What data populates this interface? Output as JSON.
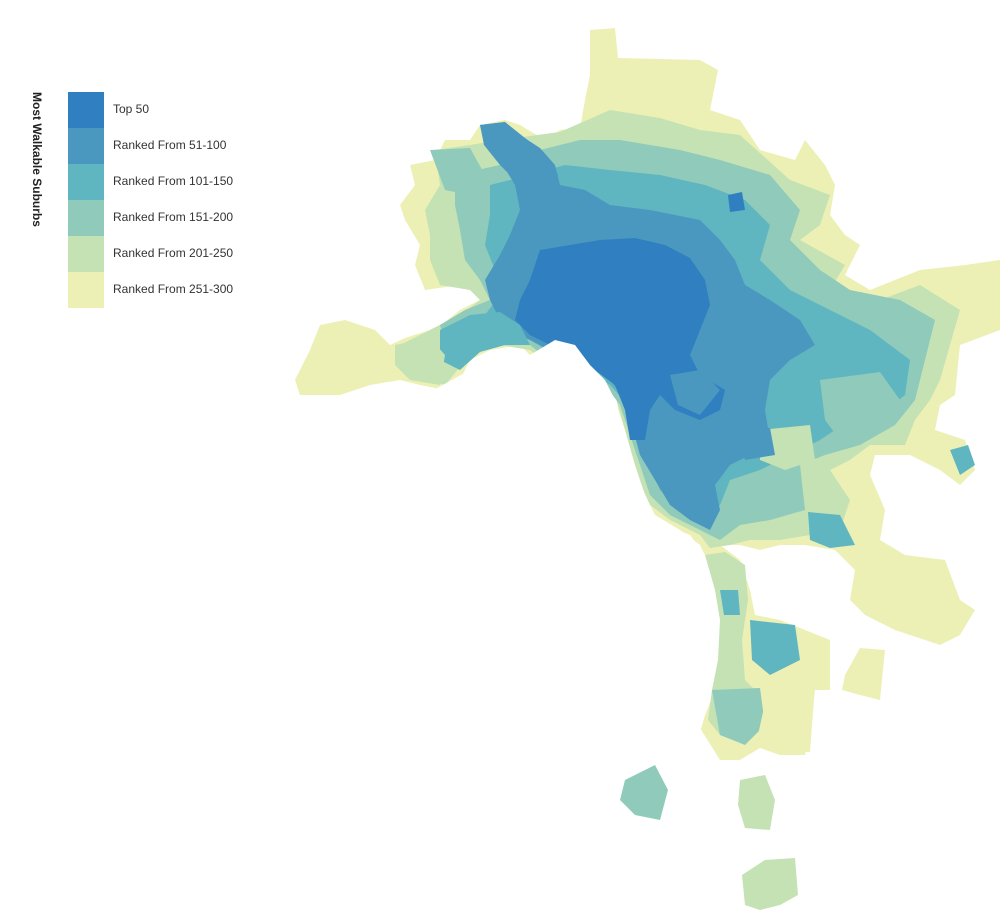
{
  "legend": {
    "title": "Most Walkable Suburbs",
    "items": [
      {
        "label": "Top 50",
        "color": "#2f7fc1"
      },
      {
        "label": "Ranked From 51-100",
        "color": "#4a98bf"
      },
      {
        "label": "Ranked From 101-150",
        "color": "#5fb6c0"
      },
      {
        "label": "Ranked From 151-200",
        "color": "#8fcabb"
      },
      {
        "label": "Ranked From 201-250",
        "color": "#c4e2b4"
      },
      {
        "label": "Ranked From 251-300",
        "color": "#edf0b5"
      }
    ]
  },
  "map": {
    "region": "Melbourne suburbs",
    "style": "choropleth by walkability rank"
  }
}
